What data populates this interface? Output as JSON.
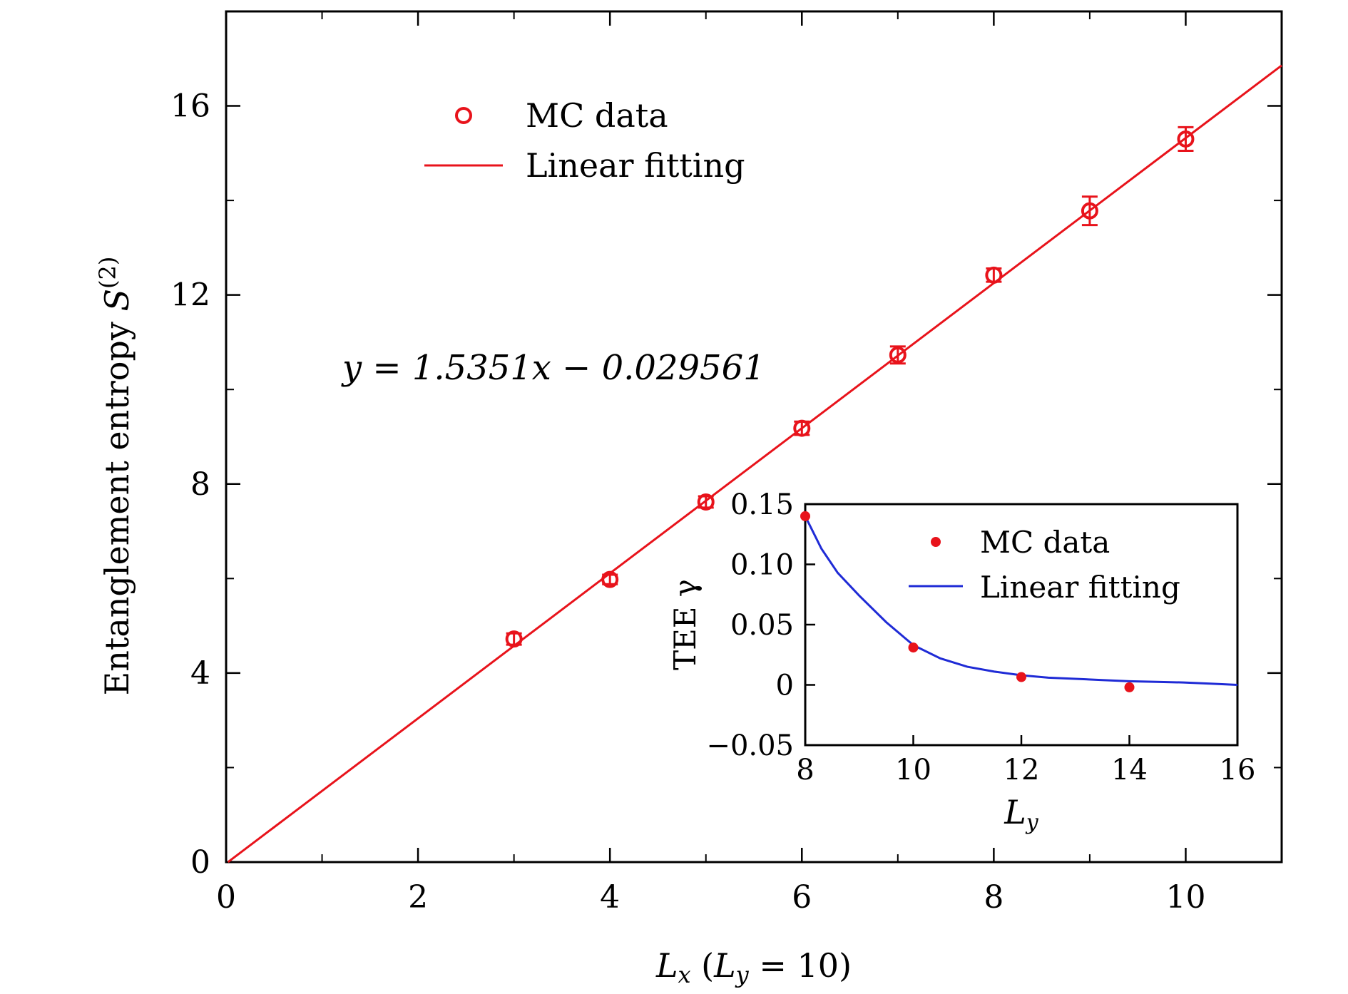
{
  "chart_data": [
    {
      "type": "scatter",
      "role": "main",
      "xlabel": "L_x (L_y = 10)",
      "xlabel_parts": {
        "sym": "L",
        "sub": "x",
        "open": " (",
        "sym2": "L",
        "sub2": "y",
        "eq": " = 10)"
      },
      "ylabel": "Entanglement entropy S(2)",
      "ylabel_parts": {
        "text": "Entanglement entropy ",
        "sym": "S",
        "sup": "(2)"
      },
      "xlim": [
        0,
        11
      ],
      "ylim": [
        0,
        18
      ],
      "xticks": [
        0,
        2,
        4,
        6,
        8,
        10
      ],
      "xticks_minor": [
        1,
        3,
        5,
        7,
        9
      ],
      "yticks": [
        0,
        4,
        8,
        12,
        16
      ],
      "yticks_minor": [
        2,
        6,
        10,
        14
      ],
      "grid": false,
      "legend_position": "top-left",
      "colors": {
        "data": "#e8131b",
        "fit": "#e8131b"
      },
      "annotation": "y = 1.5351x − 0.029561",
      "series": [
        {
          "name": "MC data",
          "marker": "open-circle",
          "x": [
            3,
            4,
            5,
            6,
            7,
            8,
            9,
            10
          ],
          "y": [
            4.72,
            5.98,
            7.62,
            9.18,
            10.73,
            12.42,
            13.78,
            15.3
          ],
          "yerr": [
            0.12,
            0.1,
            0.12,
            0.14,
            0.18,
            0.14,
            0.3,
            0.25
          ]
        },
        {
          "name": "Linear fitting",
          "style": "line",
          "slope": 1.5351,
          "intercept": -0.029561,
          "x": [
            0,
            11
          ]
        }
      ]
    },
    {
      "type": "scatter",
      "role": "inset",
      "xlabel": "L_y",
      "xlabel_parts": {
        "sym": "L",
        "sub": "y"
      },
      "ylabel": "TEE γ",
      "xlim": [
        8,
        16
      ],
      "ylim": [
        -0.05,
        0.15
      ],
      "xticks": [
        8,
        10,
        12,
        14,
        16
      ],
      "yticks": [
        -0.05,
        0,
        0.05,
        0.1,
        0.15
      ],
      "ytick_labels": [
        "−0.05",
        "0",
        "0.05",
        "0.10",
        "0.15"
      ],
      "legend_position": "top-right",
      "colors": {
        "data": "#e8131b",
        "fit": "#1f2bd6"
      },
      "series": [
        {
          "name": "MC data",
          "marker": "filled-dot",
          "x": [
            8,
            10,
            12,
            14
          ],
          "y": [
            0.14,
            0.031,
            0.0065,
            -0.002
          ]
        },
        {
          "name": "Linear fitting",
          "style": "line",
          "x": [
            8,
            8.3,
            8.6,
            9,
            9.5,
            10,
            10.5,
            11,
            11.5,
            12,
            12.5,
            13,
            13.5,
            14,
            14.5,
            15,
            15.5,
            16
          ],
          "y": [
            0.14,
            0.113,
            0.093,
            0.074,
            0.052,
            0.033,
            0.022,
            0.015,
            0.011,
            0.008,
            0.006,
            0.005,
            0.004,
            0.003,
            0.0025,
            0.002,
            0.001,
            0.0
          ]
        }
      ]
    }
  ]
}
